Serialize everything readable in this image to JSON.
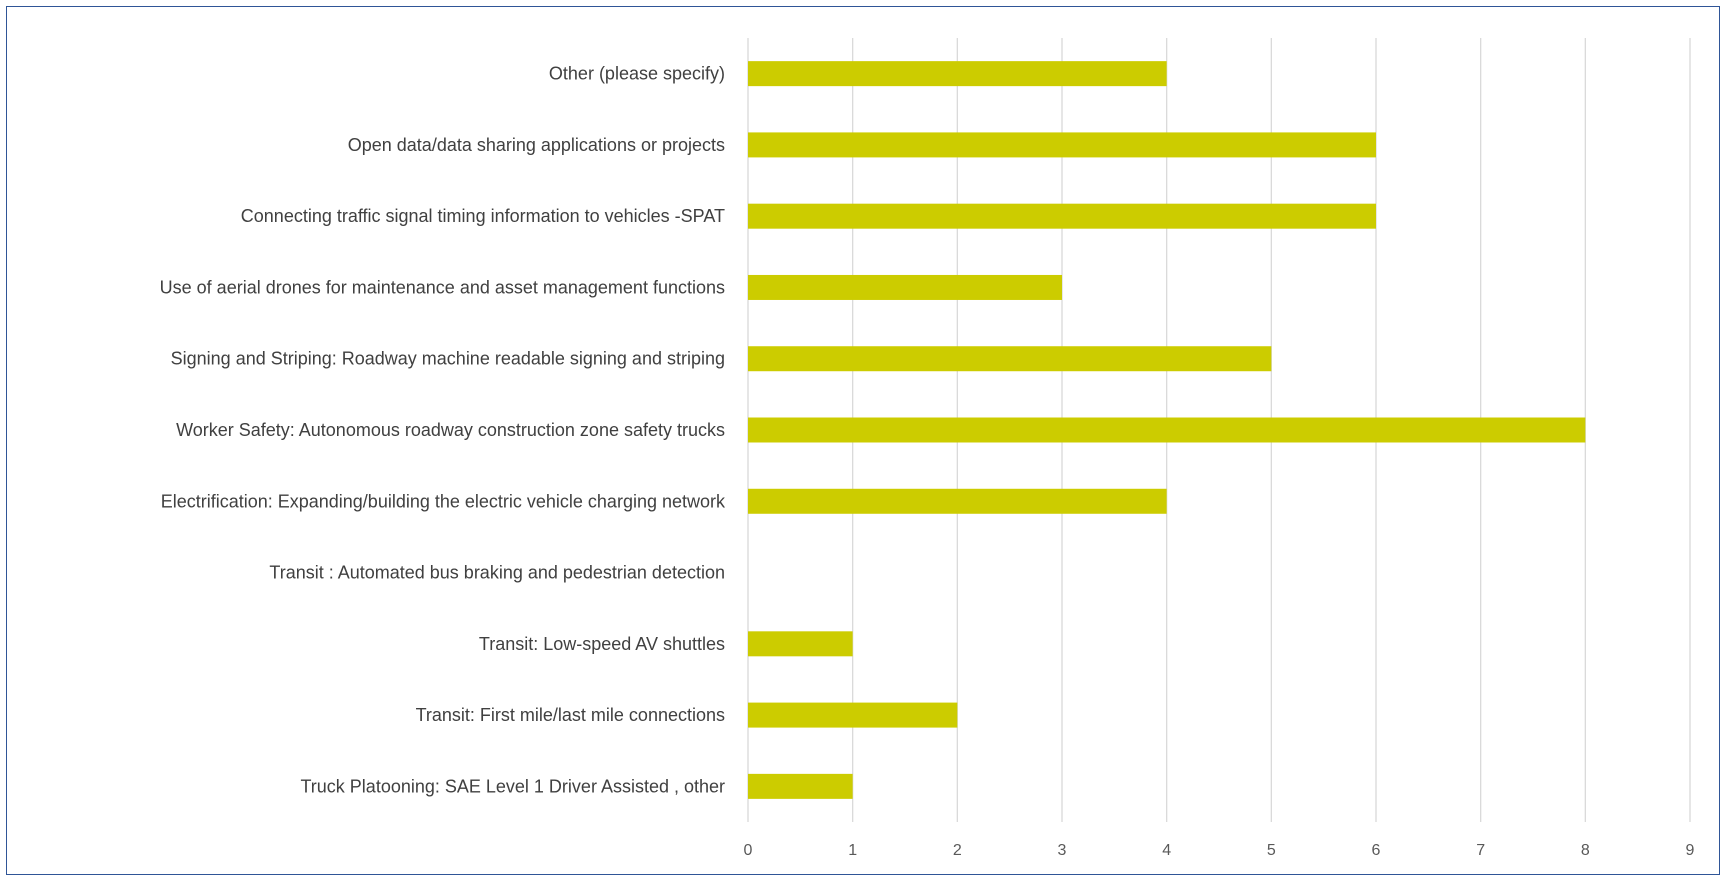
{
  "chart_data": {
    "type": "bar",
    "orientation": "horizontal",
    "title": "",
    "xlabel": "",
    "ylabel": "",
    "categories": [
      "Other (please specify)",
      "Open data/data sharing applications or projects",
      "Connecting traffic signal timing information to vehicles -SPAT",
      "Use of aerial drones for maintenance and  asset management functions",
      "Signing and Striping: Roadway machine readable signing and striping",
      "Worker Safety: Autonomous roadway construction zone safety trucks",
      "Electrification: Expanding/building the electric vehicle charging network",
      "Transit : Automated bus braking and pedestrian detection",
      "Transit: Low-speed AV shuttles",
      "Transit: First mile/last mile connections",
      "Truck Platooning: SAE Level 1 Driver Assisted , other"
    ],
    "values": [
      4,
      6,
      6,
      3,
      5,
      8,
      4,
      0,
      1,
      2,
      1
    ],
    "xlim": [
      0,
      9
    ],
    "xticks": [
      "0",
      "1",
      "2",
      "3",
      "4",
      "5",
      "6",
      "7",
      "8",
      "9"
    ],
    "grid": "vertical",
    "legend": "none",
    "bar_color": "#cccc00",
    "grid_color": "#d9d9d9",
    "border_color": "#2f5597"
  }
}
